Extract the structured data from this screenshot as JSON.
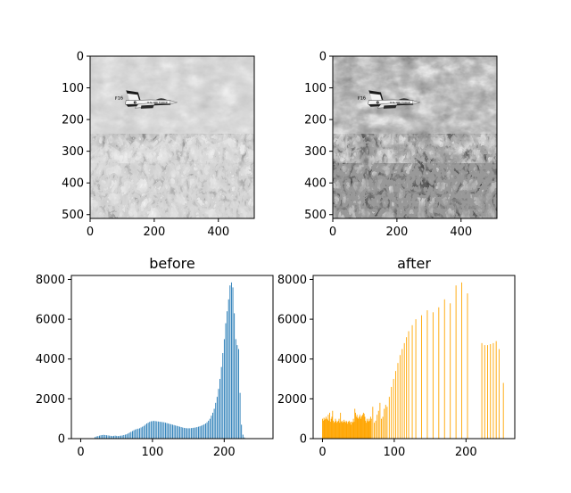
{
  "chart_data": [
    {
      "type": "image",
      "title": "",
      "image_description": "grayscale photo of F-16 jet flying over snowy mountains",
      "aircraft_markings": [
        "F16",
        "U.S. AIR FORCE"
      ],
      "xlim": [
        0,
        512
      ],
      "ylim": [
        512,
        0
      ],
      "x_ticks": [
        0,
        200,
        400
      ],
      "y_ticks": [
        0,
        100,
        200,
        300,
        400,
        500
      ],
      "contrast": "original"
    },
    {
      "type": "image",
      "title": "",
      "image_description": "same airplane photo after histogram equalization (higher contrast)",
      "aircraft_markings": [
        "F16",
        "U.S. AIR FORCE"
      ],
      "xlim": [
        0,
        512
      ],
      "ylim": [
        512,
        0
      ],
      "x_ticks": [
        0,
        200,
        400
      ],
      "y_ticks": [
        0,
        100,
        200,
        300,
        400,
        500
      ],
      "contrast": "equalized"
    },
    {
      "type": "bar",
      "title": "before",
      "xlim": [
        -13,
        268
      ],
      "ylim": [
        0,
        8200
      ],
      "x_ticks": [
        0,
        100,
        200
      ],
      "y_ticks": [
        0,
        2000,
        4000,
        6000,
        8000
      ],
      "color": "#1f77b4",
      "points": [
        [
          20,
          80
        ],
        [
          22,
          110
        ],
        [
          24,
          130
        ],
        [
          26,
          150
        ],
        [
          28,
          170
        ],
        [
          30,
          180
        ],
        [
          32,
          190
        ],
        [
          34,
          180
        ],
        [
          36,
          170
        ],
        [
          38,
          160
        ],
        [
          40,
          150
        ],
        [
          42,
          140
        ],
        [
          44,
          130
        ],
        [
          46,
          140
        ],
        [
          48,
          150
        ],
        [
          50,
          140
        ],
        [
          52,
          130
        ],
        [
          54,
          140
        ],
        [
          56,
          150
        ],
        [
          58,
          160
        ],
        [
          60,
          180
        ],
        [
          62,
          200
        ],
        [
          64,
          220
        ],
        [
          66,
          260
        ],
        [
          68,
          300
        ],
        [
          70,
          340
        ],
        [
          72,
          380
        ],
        [
          74,
          420
        ],
        [
          76,
          460
        ],
        [
          78,
          480
        ],
        [
          80,
          500
        ],
        [
          82,
          520
        ],
        [
          84,
          560
        ],
        [
          86,
          600
        ],
        [
          88,
          640
        ],
        [
          90,
          700
        ],
        [
          92,
          760
        ],
        [
          94,
          800
        ],
        [
          96,
          840
        ],
        [
          98,
          870
        ],
        [
          100,
          880
        ],
        [
          102,
          890
        ],
        [
          104,
          880
        ],
        [
          106,
          870
        ],
        [
          108,
          860
        ],
        [
          110,
          850
        ],
        [
          112,
          840
        ],
        [
          114,
          830
        ],
        [
          116,
          820
        ],
        [
          118,
          800
        ],
        [
          120,
          780
        ],
        [
          122,
          760
        ],
        [
          124,
          740
        ],
        [
          126,
          720
        ],
        [
          128,
          700
        ],
        [
          130,
          680
        ],
        [
          132,
          660
        ],
        [
          134,
          640
        ],
        [
          136,
          620
        ],
        [
          138,
          600
        ],
        [
          140,
          580
        ],
        [
          142,
          560
        ],
        [
          144,
          540
        ],
        [
          146,
          530
        ],
        [
          148,
          520
        ],
        [
          150,
          520
        ],
        [
          152,
          520
        ],
        [
          154,
          530
        ],
        [
          156,
          540
        ],
        [
          158,
          550
        ],
        [
          160,
          560
        ],
        [
          162,
          580
        ],
        [
          164,
          600
        ],
        [
          166,
          620
        ],
        [
          168,
          650
        ],
        [
          170,
          680
        ],
        [
          172,
          720
        ],
        [
          174,
          760
        ],
        [
          176,
          820
        ],
        [
          178,
          900
        ],
        [
          180,
          1000
        ],
        [
          182,
          1150
        ],
        [
          184,
          1300
        ],
        [
          186,
          1500
        ],
        [
          188,
          1800
        ],
        [
          190,
          2100
        ],
        [
          192,
          2500
        ],
        [
          194,
          3000
        ],
        [
          196,
          3600
        ],
        [
          198,
          4300
        ],
        [
          200,
          5000
        ],
        [
          202,
          5800
        ],
        [
          204,
          6400
        ],
        [
          206,
          7000
        ],
        [
          208,
          7700
        ],
        [
          210,
          7850
        ],
        [
          212,
          7600
        ],
        [
          214,
          6300
        ],
        [
          216,
          5000
        ],
        [
          218,
          4700
        ],
        [
          220,
          4500
        ],
        [
          222,
          2300
        ],
        [
          224,
          700
        ],
        [
          226,
          200
        ],
        [
          228,
          60
        ]
      ]
    },
    {
      "type": "bar",
      "title": "after",
      "xlim": [
        -13,
        268
      ],
      "ylim": [
        0,
        8200
      ],
      "x_ticks": [
        0,
        100,
        200
      ],
      "y_ticks": [
        0,
        2000,
        4000,
        6000,
        8000
      ],
      "color": "#ffa500",
      "points": [
        [
          0,
          1000
        ],
        [
          1,
          900
        ],
        [
          2,
          1050
        ],
        [
          3,
          950
        ],
        [
          4,
          1000
        ],
        [
          5,
          1100
        ],
        [
          6,
          1000
        ],
        [
          7,
          950
        ],
        [
          8,
          1200
        ],
        [
          9,
          900
        ],
        [
          10,
          1300
        ],
        [
          11,
          850
        ],
        [
          12,
          1000
        ],
        [
          13,
          1100
        ],
        [
          14,
          1400
        ],
        [
          15,
          900
        ],
        [
          16,
          800
        ],
        [
          17,
          850
        ],
        [
          18,
          1000
        ],
        [
          19,
          900
        ],
        [
          20,
          800
        ],
        [
          21,
          850
        ],
        [
          22,
          900
        ],
        [
          23,
          1000
        ],
        [
          24,
          800
        ],
        [
          25,
          1300
        ],
        [
          26,
          850
        ],
        [
          27,
          900
        ],
        [
          28,
          800
        ],
        [
          29,
          850
        ],
        [
          30,
          950
        ],
        [
          31,
          850
        ],
        [
          32,
          800
        ],
        [
          33,
          900
        ],
        [
          34,
          850
        ],
        [
          35,
          750
        ],
        [
          36,
          850
        ],
        [
          37,
          900
        ],
        [
          38,
          800
        ],
        [
          39,
          850
        ],
        [
          40,
          700
        ],
        [
          41,
          850
        ],
        [
          42,
          800
        ],
        [
          43,
          1000
        ],
        [
          44,
          850
        ],
        [
          45,
          1500
        ],
        [
          46,
          1300
        ],
        [
          47,
          1100
        ],
        [
          48,
          1200
        ],
        [
          49,
          1050
        ],
        [
          50,
          1000
        ],
        [
          51,
          1100
        ],
        [
          52,
          1200
        ],
        [
          53,
          1000
        ],
        [
          54,
          1100
        ],
        [
          55,
          1150
        ],
        [
          56,
          1200
        ],
        [
          57,
          1300
        ],
        [
          58,
          1250
        ],
        [
          59,
          1100
        ],
        [
          60,
          900
        ],
        [
          61,
          800
        ],
        [
          62,
          1000
        ],
        [
          63,
          900
        ],
        [
          64,
          850
        ],
        [
          65,
          1000
        ],
        [
          66,
          900
        ],
        [
          67,
          1100
        ],
        [
          68,
          1000
        ],
        [
          70,
          1600
        ],
        [
          72,
          800
        ],
        [
          74,
          900
        ],
        [
          76,
          1200
        ],
        [
          78,
          1400
        ],
        [
          80,
          1800
        ],
        [
          82,
          1000
        ],
        [
          84,
          1100
        ],
        [
          86,
          1500
        ],
        [
          88,
          1700
        ],
        [
          90,
          1600
        ],
        [
          93,
          2100
        ],
        [
          96,
          2600
        ],
        [
          99,
          3000
        ],
        [
          102,
          3400
        ],
        [
          105,
          3800
        ],
        [
          108,
          4200
        ],
        [
          111,
          4500
        ],
        [
          114,
          4800
        ],
        [
          117,
          5100
        ],
        [
          120,
          5400
        ],
        [
          125,
          5700
        ],
        [
          130,
          6000
        ],
        [
          138,
          6200
        ],
        [
          146,
          6450
        ],
        [
          154,
          6350
        ],
        [
          162,
          6600
        ],
        [
          170,
          7000
        ],
        [
          178,
          6800
        ],
        [
          186,
          7700
        ],
        [
          194,
          7850
        ],
        [
          202,
          7300
        ],
        [
          222,
          4800
        ],
        [
          226,
          4700
        ],
        [
          230,
          4700
        ],
        [
          234,
          4750
        ],
        [
          238,
          4800
        ],
        [
          242,
          4900
        ],
        [
          246,
          4500
        ],
        [
          252,
          2800
        ]
      ]
    }
  ]
}
